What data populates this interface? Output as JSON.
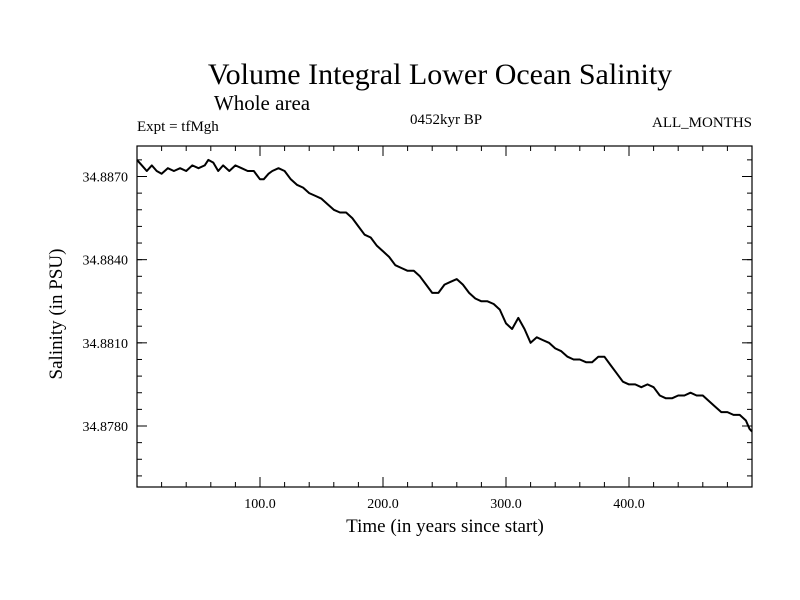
{
  "chart_data": {
    "type": "line",
    "title": "Volume Integral Lower Ocean Salinity",
    "subtitle": "Whole area",
    "annotations": {
      "left": "Expt = tfMgh",
      "center": "0452kyr BP",
      "right": "ALL_MONTHS"
    },
    "xlabel": "Time (in years since start)",
    "ylabel": "Salinity (in PSU)",
    "xlim": [
      0,
      500
    ],
    "ylim": [
      34.8758,
      34.8881
    ],
    "xticks": [
      {
        "value": 100,
        "label": "100.0"
      },
      {
        "value": 200,
        "label": "200.0"
      },
      {
        "value": 300,
        "label": "300.0"
      },
      {
        "value": 400,
        "label": "400.0"
      }
    ],
    "yticks": [
      {
        "value": 34.887,
        "label": "34.8870"
      },
      {
        "value": 34.884,
        "label": "34.8840"
      },
      {
        "value": 34.881,
        "label": "34.8810"
      },
      {
        "value": 34.878,
        "label": "34.8780"
      }
    ],
    "grid": false,
    "series": [
      {
        "color": "#000000",
        "points": [
          [
            0,
            34.8876
          ],
          [
            4,
            34.8874
          ],
          [
            8,
            34.8872
          ],
          [
            12,
            34.8874
          ],
          [
            16,
            34.8872
          ],
          [
            20,
            34.8871
          ],
          [
            25,
            34.8873
          ],
          [
            30,
            34.8872
          ],
          [
            35,
            34.8873
          ],
          [
            40,
            34.8872
          ],
          [
            45,
            34.8874
          ],
          [
            50,
            34.8873
          ],
          [
            55,
            34.8874
          ],
          [
            58,
            34.8876
          ],
          [
            62,
            34.8875
          ],
          [
            66,
            34.8872
          ],
          [
            70,
            34.8874
          ],
          [
            75,
            34.8872
          ],
          [
            80,
            34.8874
          ],
          [
            85,
            34.8873
          ],
          [
            90,
            34.8872
          ],
          [
            95,
            34.8872
          ],
          [
            100,
            34.8869
          ],
          [
            103,
            34.8869
          ],
          [
            107,
            34.8871
          ],
          [
            110,
            34.8872
          ],
          [
            115,
            34.8873
          ],
          [
            120,
            34.8872
          ],
          [
            125,
            34.8869
          ],
          [
            130,
            34.8867
          ],
          [
            135,
            34.8866
          ],
          [
            140,
            34.8864
          ],
          [
            145,
            34.8863
          ],
          [
            150,
            34.8862
          ],
          [
            155,
            34.886
          ],
          [
            160,
            34.8858
          ],
          [
            165,
            34.8857
          ],
          [
            170,
            34.8857
          ],
          [
            175,
            34.8855
          ],
          [
            180,
            34.8852
          ],
          [
            185,
            34.8849
          ],
          [
            190,
            34.8848
          ],
          [
            195,
            34.8845
          ],
          [
            200,
            34.8843
          ],
          [
            205,
            34.8841
          ],
          [
            210,
            34.8838
          ],
          [
            215,
            34.8837
          ],
          [
            220,
            34.8836
          ],
          [
            225,
            34.8836
          ],
          [
            230,
            34.8834
          ],
          [
            235,
            34.8831
          ],
          [
            240,
            34.8828
          ],
          [
            245,
            34.8828
          ],
          [
            250,
            34.8831
          ],
          [
            255,
            34.8832
          ],
          [
            260,
            34.8833
          ],
          [
            265,
            34.8831
          ],
          [
            270,
            34.8828
          ],
          [
            275,
            34.8826
          ],
          [
            280,
            34.8825
          ],
          [
            285,
            34.8825
          ],
          [
            290,
            34.8824
          ],
          [
            295,
            34.8822
          ],
          [
            300,
            34.8817
          ],
          [
            305,
            34.8815
          ],
          [
            310,
            34.8819
          ],
          [
            315,
            34.8815
          ],
          [
            320,
            34.881
          ],
          [
            325,
            34.8812
          ],
          [
            330,
            34.8811
          ],
          [
            335,
            34.881
          ],
          [
            340,
            34.8808
          ],
          [
            345,
            34.8807
          ],
          [
            350,
            34.8805
          ],
          [
            355,
            34.8804
          ],
          [
            360,
            34.8804
          ],
          [
            365,
            34.8803
          ],
          [
            370,
            34.8803
          ],
          [
            375,
            34.8805
          ],
          [
            380,
            34.8805
          ],
          [
            385,
            34.8802
          ],
          [
            390,
            34.8799
          ],
          [
            395,
            34.8796
          ],
          [
            400,
            34.8795
          ],
          [
            405,
            34.8795
          ],
          [
            410,
            34.8794
          ],
          [
            415,
            34.8795
          ],
          [
            420,
            34.8794
          ],
          [
            425,
            34.8791
          ],
          [
            430,
            34.879
          ],
          [
            435,
            34.879
          ],
          [
            440,
            34.8791
          ],
          [
            445,
            34.8791
          ],
          [
            450,
            34.8792
          ],
          [
            455,
            34.8791
          ],
          [
            460,
            34.8791
          ],
          [
            465,
            34.8789
          ],
          [
            470,
            34.8787
          ],
          [
            475,
            34.8785
          ],
          [
            480,
            34.8785
          ],
          [
            485,
            34.8784
          ],
          [
            490,
            34.8784
          ],
          [
            495,
            34.8782
          ],
          [
            498,
            34.8779
          ],
          [
            500,
            34.8778
          ]
        ]
      }
    ]
  }
}
